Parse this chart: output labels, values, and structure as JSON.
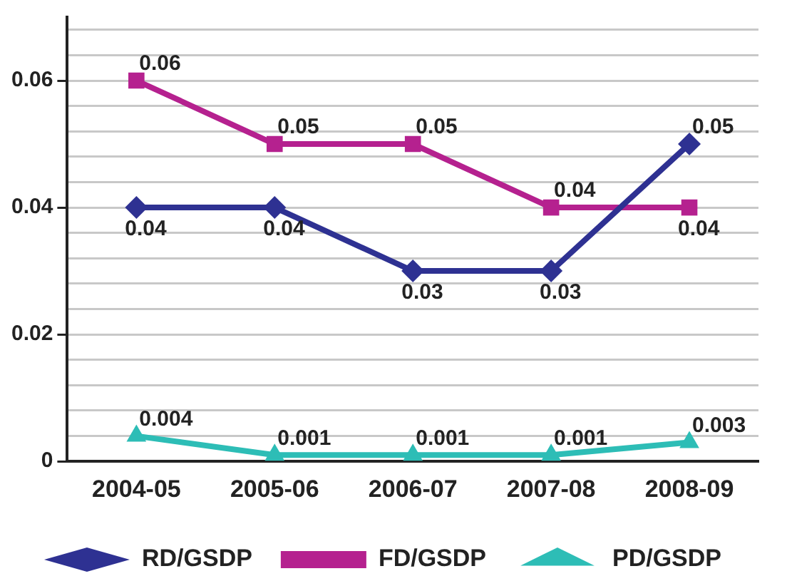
{
  "chart_data": {
    "type": "line",
    "categories": [
      "2004-05",
      "2005-06",
      "2006-07",
      "2007-08",
      "2008-09"
    ],
    "series": [
      {
        "name": "RD/GSDP",
        "color": "#2e3192",
        "marker": "diamond",
        "values": [
          0.04,
          0.04,
          0.03,
          0.03,
          0.05
        ]
      },
      {
        "name": "FD/GSDP",
        "color": "#b5218f",
        "marker": "square",
        "values": [
          0.06,
          0.05,
          0.05,
          0.04,
          0.04
        ]
      },
      {
        "name": "PD/GSDP",
        "color": "#2dbdb6",
        "marker": "triangle",
        "values": [
          0.004,
          0.001,
          0.001,
          0.001,
          0.003
        ]
      }
    ],
    "ylim": [
      0,
      0.07
    ],
    "yticks": [
      0,
      {
        "value": 0.004,
        "label": null
      },
      {
        "value": 0.008,
        "label": null
      },
      {
        "value": 0.012,
        "label": null
      },
      {
        "value": 0.016,
        "label": null
      },
      0.02,
      {
        "value": 0.024,
        "label": null
      },
      {
        "value": 0.028,
        "label": null
      },
      {
        "value": 0.032,
        "label": null
      },
      {
        "value": 0.036,
        "label": null
      },
      0.04,
      {
        "value": 0.044,
        "label": null
      },
      {
        "value": 0.048,
        "label": null
      },
      {
        "value": 0.052,
        "label": null
      },
      {
        "value": 0.056,
        "label": null
      },
      0.06,
      {
        "value": 0.064,
        "label": null
      },
      {
        "value": 0.068,
        "label": null
      }
    ],
    "grid": "y",
    "legend": "bottom",
    "data_labels": true,
    "line_style": "solid"
  }
}
